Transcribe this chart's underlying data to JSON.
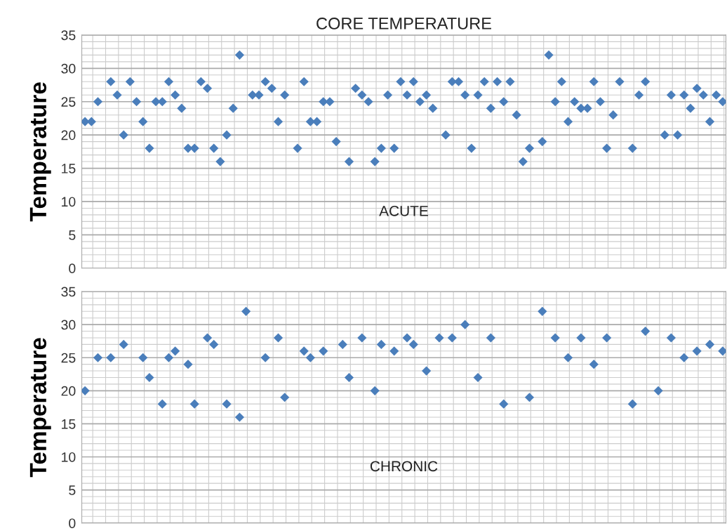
{
  "chart_data": [
    {
      "type": "scatter",
      "title": "CORE TEMPERATURE",
      "ylabel": "Temperature",
      "annotations": [
        "ACUTE"
      ],
      "categories": [
        null,
        null,
        null,
        null,
        null,
        null,
        null,
        null,
        null,
        null,
        null,
        null,
        null,
        null,
        null,
        null,
        null,
        null,
        null,
        null,
        null,
        null,
        null,
        null,
        null,
        null,
        null,
        null,
        null,
        null,
        null,
        null,
        null,
        null,
        null,
        null,
        null,
        null,
        null,
        null,
        null,
        null,
        null,
        null,
        null,
        null,
        null,
        null,
        null,
        null,
        null,
        null,
        null,
        null,
        null,
        null,
        null,
        null,
        null,
        null,
        null,
        null,
        null,
        null,
        null,
        null,
        null,
        null,
        null,
        null,
        null,
        null,
        null,
        null,
        null,
        null,
        null,
        null,
        null,
        null,
        null,
        null,
        null,
        null,
        null,
        null,
        null,
        null,
        null,
        null,
        null,
        null,
        null,
        null,
        null,
        null,
        null,
        null,
        null,
        null
      ],
      "series": [
        {
          "color": "#4a7ebb",
          "values": [
            22,
            22,
            25,
            null,
            28,
            26,
            20,
            28,
            25,
            22,
            18,
            25,
            25,
            28,
            26,
            24,
            18,
            18,
            28,
            27,
            18,
            16,
            20,
            24,
            32,
            null,
            26,
            26,
            28,
            27,
            22,
            26,
            null,
            18,
            28,
            22,
            22,
            25,
            25,
            19,
            null,
            16,
            27,
            26,
            25,
            16,
            18,
            26,
            18,
            28,
            26,
            28,
            25,
            26,
            24,
            null,
            20,
            28,
            28,
            26,
            18,
            26,
            28,
            24,
            28,
            25,
            28,
            23,
            16,
            18,
            null,
            19,
            32,
            25,
            28,
            22,
            25,
            24,
            24,
            28,
            25,
            18,
            23,
            28,
            null,
            18,
            26,
            28,
            null,
            null,
            20,
            26,
            20,
            26,
            24,
            27,
            26,
            22,
            26,
            25
          ]
        }
      ],
      "ylim": [
        0,
        35
      ],
      "yticks": [
        0,
        5,
        10,
        15,
        20,
        25,
        30,
        35
      ],
      "grid": true,
      "marker": "diamond",
      "tick_labels": "y"
    },
    {
      "type": "scatter",
      "ylabel": "Temperature",
      "annotations": [
        "CHRONIC"
      ],
      "categories": [
        null,
        null,
        null,
        null,
        null,
        null,
        null,
        null,
        null,
        null,
        null,
        null,
        null,
        null,
        null,
        null,
        null,
        null,
        null,
        null,
        null,
        null,
        null,
        null,
        null,
        null,
        null,
        null,
        null,
        null,
        null,
        null,
        null,
        null,
        null,
        null,
        null,
        null,
        null,
        null,
        null,
        null,
        null,
        null,
        null,
        null,
        null,
        null,
        null,
        null,
        null,
        null,
        null,
        null,
        null,
        null,
        null,
        null,
        null,
        null,
        null,
        null,
        null,
        null,
        null,
        null,
        null,
        null,
        null,
        null,
        null,
        null,
        null,
        null,
        null,
        null,
        null,
        null,
        null,
        null,
        null,
        null,
        null,
        null,
        null,
        null,
        null,
        null,
        null,
        null,
        null,
        null,
        null,
        null,
        null,
        null,
        null,
        null,
        null,
        null
      ],
      "series": [
        {
          "color": "#4a7ebb",
          "values": [
            20,
            null,
            25,
            null,
            25,
            null,
            27,
            null,
            null,
            25,
            22,
            null,
            18,
            25,
            26,
            null,
            24,
            18,
            null,
            28,
            27,
            null,
            18,
            null,
            16,
            32,
            null,
            null,
            25,
            null,
            28,
            19,
            null,
            null,
            26,
            25,
            null,
            26,
            null,
            null,
            27,
            22,
            null,
            28,
            null,
            20,
            27,
            null,
            26,
            null,
            28,
            27,
            null,
            23,
            null,
            28,
            null,
            28,
            null,
            30,
            null,
            22,
            null,
            28,
            null,
            18,
            null,
            null,
            null,
            19,
            null,
            32,
            null,
            28,
            null,
            25,
            null,
            28,
            null,
            24,
            null,
            28,
            null,
            null,
            null,
            18,
            null,
            29,
            null,
            20,
            null,
            28,
            null,
            25,
            null,
            26,
            null,
            27,
            null,
            26
          ]
        }
      ],
      "ylim": [
        0,
        35
      ],
      "yticks": [
        0,
        5,
        10,
        15,
        20,
        25,
        30,
        35
      ],
      "grid": true,
      "marker": "diamond",
      "tick_labels": "y"
    }
  ]
}
